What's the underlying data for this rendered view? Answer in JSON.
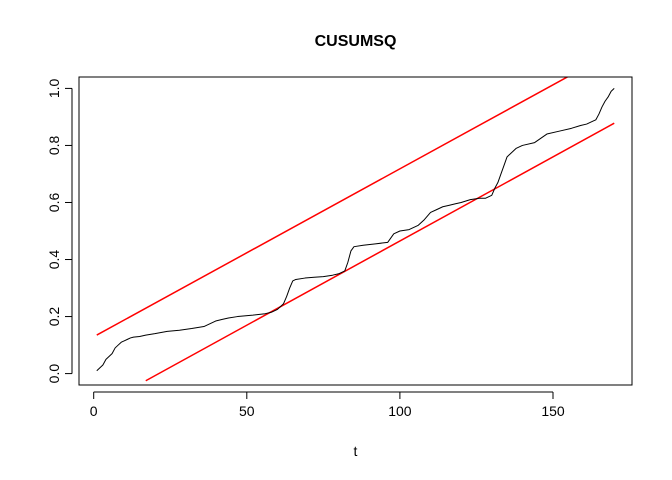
{
  "chart_data": {
    "type": "line",
    "title": "CUSUMSQ",
    "xlabel": "t",
    "ylabel": "",
    "xlim": [
      -4.8,
      175.8
    ],
    "ylim": [
      -0.04,
      1.04
    ],
    "xticks": [
      0,
      50,
      100,
      150
    ],
    "xtick_labels": [
      "0",
      "50",
      "100",
      "150"
    ],
    "yticks": [
      0.0,
      0.2,
      0.4,
      0.6,
      0.8,
      1.0
    ],
    "ytick_labels": [
      "0.0",
      "0.2",
      "0.4",
      "0.6",
      "0.8",
      "1.0"
    ],
    "grid": false,
    "colors": {
      "series": "#000000",
      "bounds": "#ff0000"
    },
    "series": [
      {
        "values_x": [
          1,
          2,
          3,
          4,
          5,
          6,
          7,
          8,
          9,
          10,
          11,
          12,
          13,
          15,
          17,
          20,
          24,
          28,
          32,
          36,
          40,
          42,
          44,
          47,
          52,
          56,
          58,
          60,
          62,
          63,
          64,
          65,
          66,
          69,
          72,
          75,
          78,
          80,
          82,
          83,
          84,
          85,
          88,
          92,
          96,
          98,
          100,
          103,
          106,
          108,
          110,
          112,
          114,
          116,
          118,
          120,
          123,
          126,
          128,
          130,
          131,
          132,
          133,
          134,
          135,
          136,
          138,
          140,
          144,
          148,
          152,
          156,
          159,
          161,
          163,
          164,
          165,
          166,
          167,
          168,
          169,
          170
        ],
        "values_y": [
          0.01,
          0.02,
          0.03,
          0.05,
          0.06,
          0.07,
          0.09,
          0.1,
          0.11,
          0.115,
          0.12,
          0.125,
          0.128,
          0.13,
          0.135,
          0.14,
          0.148,
          0.152,
          0.158,
          0.165,
          0.185,
          0.19,
          0.195,
          0.2,
          0.205,
          0.21,
          0.215,
          0.225,
          0.245,
          0.27,
          0.3,
          0.325,
          0.33,
          0.335,
          0.338,
          0.34,
          0.345,
          0.35,
          0.36,
          0.39,
          0.43,
          0.445,
          0.45,
          0.455,
          0.46,
          0.49,
          0.5,
          0.505,
          0.52,
          0.54,
          0.565,
          0.575,
          0.585,
          0.59,
          0.595,
          0.6,
          0.61,
          0.615,
          0.615,
          0.625,
          0.65,
          0.67,
          0.7,
          0.73,
          0.76,
          0.77,
          0.79,
          0.8,
          0.81,
          0.84,
          0.85,
          0.86,
          0.87,
          0.875,
          0.885,
          0.89,
          0.91,
          0.935,
          0.955,
          0.97,
          0.99,
          1.0
        ]
      }
    ],
    "bounds": {
      "upper": {
        "x": [
          1,
          155
        ],
        "y": [
          0.135,
          1.042
        ]
      },
      "lower": {
        "x": [
          17,
          170
        ],
        "y": [
          -0.025,
          0.878
        ]
      }
    }
  }
}
